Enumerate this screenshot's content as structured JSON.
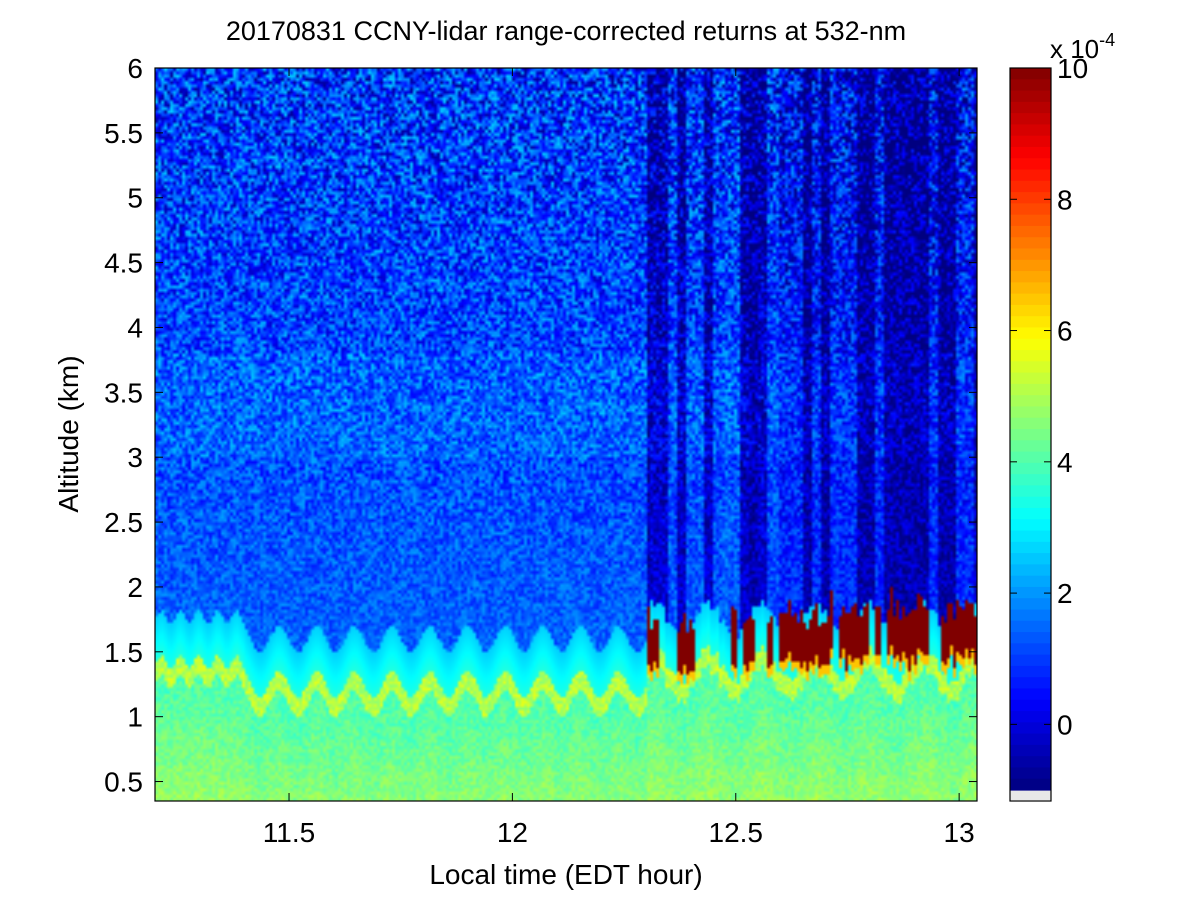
{
  "chart_data": {
    "type": "heatmap",
    "title": "20170831 CCNY-lidar range-corrected returns at 532-nm",
    "xlabel": "Local time (EDT hour)",
    "ylabel": "Altitude (km)",
    "xlim": [
      11.2,
      13.04
    ],
    "ylim": [
      0.35,
      6.0
    ],
    "xticks": [
      11.5,
      12,
      12.5,
      13
    ],
    "yticks": [
      0.5,
      1,
      1.5,
      2,
      2.5,
      3,
      3.5,
      4,
      4.5,
      5,
      5.5,
      6
    ],
    "colorbar": {
      "label": "x 10",
      "exponent": "-4",
      "range": [
        -1,
        10
      ],
      "ticks": [
        0,
        2,
        4,
        6,
        8,
        10
      ],
      "colormap": "jet"
    },
    "features": {
      "aerosol_layer_top_km": 1.4,
      "dark_columns_start_hour": 12.3,
      "cloud_base_km": [
        1.3,
        1.7
      ],
      "cloud_value_max": 10
    }
  }
}
